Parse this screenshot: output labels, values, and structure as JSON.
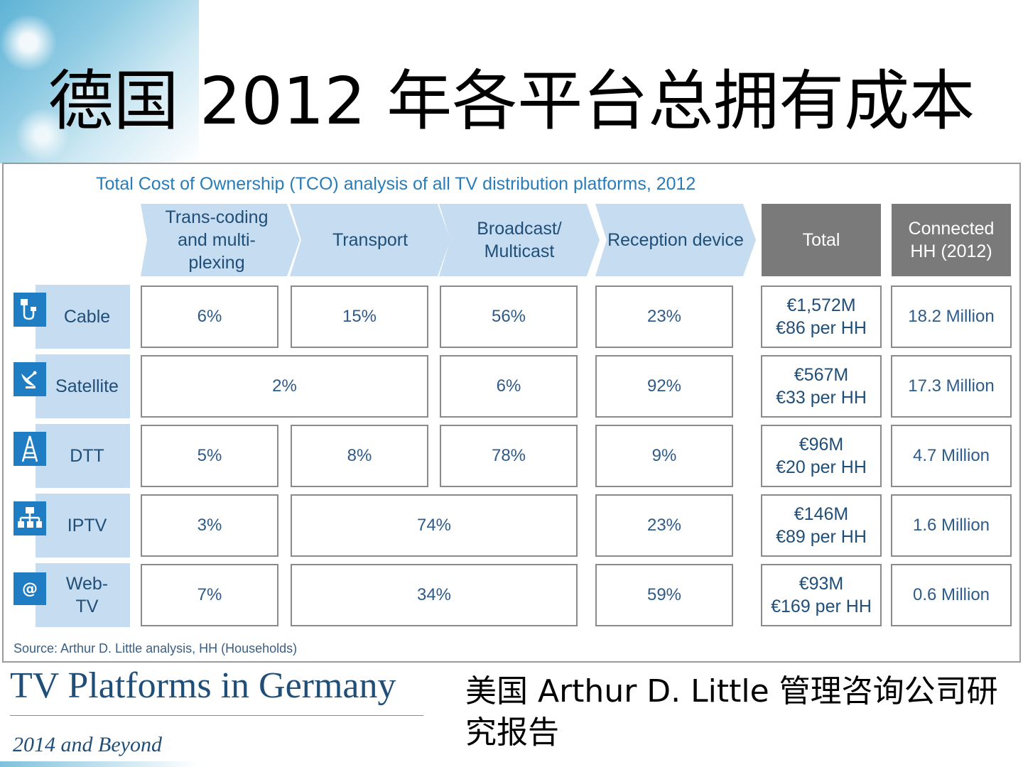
{
  "slide": {
    "title": "德国 2012 年各平台总拥有成本",
    "caption": "美国 Arthur D. Little 管理咨询公司研究报告"
  },
  "figure": {
    "title": "Total Cost of Ownership (TCO) analysis of all TV distribution platforms, 2012",
    "headers": {
      "transcoding": "Trans-coding and multi- plexing",
      "transport": "Transport",
      "broadcast": "Broadcast/ Multicast",
      "reception": "Reception device",
      "total": "Total",
      "connected": "Connected HH (2012)"
    },
    "rows": [
      {
        "label": "Cable",
        "icon": "cable-plug-icon",
        "transcoding": "6%",
        "transport": "15%",
        "broadcast": "56%",
        "reception": "23%",
        "total_line1": "€1,572M",
        "total_line2": "€86 per HH",
        "connected": "18.2 Million"
      },
      {
        "label": "Satellite",
        "icon": "satellite-dish-icon",
        "transcoding_transport": "2%",
        "broadcast": "6%",
        "reception": "92%",
        "total_line1": "€567M",
        "total_line2": "€33 per HH",
        "connected": "17.3 Million"
      },
      {
        "label": "DTT",
        "icon": "antenna-tower-icon",
        "transcoding": "5%",
        "transport": "8%",
        "broadcast": "78%",
        "reception": "9%",
        "total_line1": "€96M",
        "total_line2": "€20 per HH",
        "connected": "4.7 Million"
      },
      {
        "label": "IPTV",
        "icon": "network-icon",
        "transcoding": "3%",
        "transport_broadcast": "74%",
        "reception": "23%",
        "total_line1": "€146M",
        "total_line2": "€89 per HH",
        "connected": "1.6 Million"
      },
      {
        "label": "Web- TV",
        "icon": "at-sign-icon",
        "transcoding": "7%",
        "transport_broadcast": "34%",
        "reception": "59%",
        "total_line1": "€93M",
        "total_line2": "€169 per HH",
        "connected": "0.6 Million"
      }
    ],
    "source": "Source: Arthur D. Little analysis, HH (Households)"
  },
  "branding": {
    "report_title": "TV Platforms in Germany",
    "report_subtitle": "2014 and Beyond"
  },
  "colors": {
    "header_blue": "#c6dcf0",
    "total_gray": "#7a7a7a",
    "text_blue": "#1f4e79",
    "icon_blue": "#1f7dc4"
  }
}
